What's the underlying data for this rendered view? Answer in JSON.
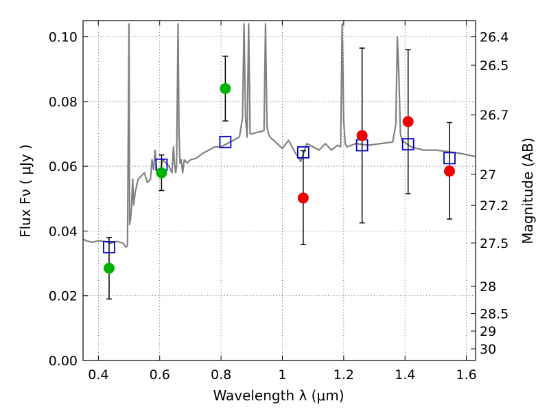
{
  "chart_data": {
    "type": "scatter",
    "xlabel": "Wavelength  λ (μm)",
    "ylabel": "Flux  Fν  ( μJy )",
    "ylabel_right": "Magnitude (AB)",
    "xlim": [
      0.35,
      1.63
    ],
    "ylim": [
      0.0,
      0.105
    ],
    "x_ticks": [
      0.4,
      0.6,
      0.8,
      1.0,
      1.2,
      1.4,
      1.6
    ],
    "x_tick_labels": [
      "0.4",
      "0.6",
      "0.8",
      "1",
      "1.2",
      "1.4",
      "1.6"
    ],
    "y_ticks": [
      0.0,
      0.02,
      0.04,
      0.06,
      0.08,
      0.1
    ],
    "y_tick_labels": [
      "0.00",
      "0.02",
      "0.04",
      "0.06",
      "0.08",
      "0.10"
    ],
    "mag_ticks": [
      {
        "label": "26.4",
        "flux": 0.1
      },
      {
        "label": "26.5",
        "flux": 0.0912
      },
      {
        "label": "26.7",
        "flux": 0.0759
      },
      {
        "label": "27",
        "flux": 0.0575
      },
      {
        "label": "27.2",
        "flux": 0.0479
      },
      {
        "label": "27.5",
        "flux": 0.0363
      },
      {
        "label": "28",
        "flux": 0.0229
      },
      {
        "label": "28.5",
        "flux": 0.0145
      },
      {
        "label": "29",
        "flux": 0.0091
      },
      {
        "label": "30",
        "flux": 0.0036
      }
    ],
    "grid": true,
    "series": [
      {
        "kind": "model-spectrum",
        "color": "#808080",
        "x": [
          0.35,
          0.36,
          0.38,
          0.4,
          0.42,
          0.44,
          0.46,
          0.48,
          0.49,
          0.495,
          0.5,
          0.502,
          0.503,
          0.504,
          0.505,
          0.508,
          0.51,
          0.512,
          0.515,
          0.52,
          0.525,
          0.53,
          0.54,
          0.55,
          0.56,
          0.57,
          0.575,
          0.58,
          0.585,
          0.59,
          0.6,
          0.61,
          0.62,
          0.63,
          0.64,
          0.645,
          0.648,
          0.652,
          0.655,
          0.66,
          0.663,
          0.666,
          0.67,
          0.675,
          0.68,
          0.69,
          0.7,
          0.72,
          0.74,
          0.76,
          0.78,
          0.8,
          0.82,
          0.84,
          0.86,
          0.87,
          0.875,
          0.88,
          0.885,
          0.89,
          0.895,
          0.9,
          0.92,
          0.94,
          0.945,
          0.95,
          0.955,
          0.96,
          1.0,
          1.02,
          1.04,
          1.06,
          1.08,
          1.1,
          1.12,
          1.14,
          1.16,
          1.18,
          1.19,
          1.195,
          1.2,
          1.205,
          1.21,
          1.24,
          1.28,
          1.32,
          1.36,
          1.37,
          1.375,
          1.38,
          1.385,
          1.39,
          1.42,
          1.46,
          1.5,
          1.54,
          1.58,
          1.63
        ],
        "y": [
          0.0375,
          0.037,
          0.0365,
          0.037,
          0.0368,
          0.0362,
          0.0368,
          0.0363,
          0.035,
          0.0355,
          0.104,
          0.042,
          0.045,
          0.043,
          0.044,
          0.047,
          0.052,
          0.056,
          0.048,
          0.052,
          0.054,
          0.056,
          0.057,
          0.058,
          0.055,
          0.056,
          0.062,
          0.059,
          0.065,
          0.059,
          0.058,
          0.062,
          0.061,
          0.06,
          0.058,
          0.066,
          0.061,
          0.058,
          0.06,
          0.104,
          0.07,
          0.061,
          0.062,
          0.058,
          0.062,
          0.061,
          0.062,
          0.0625,
          0.064,
          0.065,
          0.066,
          0.066,
          0.067,
          0.068,
          0.069,
          0.075,
          0.104,
          0.075,
          0.069,
          0.104,
          0.07,
          0.07,
          0.0705,
          0.071,
          0.104,
          0.072,
          0.07,
          0.069,
          0.0655,
          0.068,
          0.0645,
          0.0615,
          0.067,
          0.066,
          0.065,
          0.067,
          0.065,
          0.0665,
          0.066,
          0.104,
          0.074,
          0.067,
          0.066,
          0.067,
          0.0665,
          0.067,
          0.0675,
          0.073,
          0.1,
          0.088,
          0.07,
          0.068,
          0.066,
          0.065,
          0.065,
          0.0645,
          0.064,
          0.063
        ]
      },
      {
        "kind": "model-photometry",
        "marker": "square",
        "color": "#0000cc",
        "x": [
          0.435,
          0.606,
          0.814,
          1.068,
          1.26,
          1.41,
          1.545
        ],
        "y": [
          0.035,
          0.0605,
          0.0675,
          0.0643,
          0.0665,
          0.0668,
          0.0625
        ]
      },
      {
        "kind": "photometry-green",
        "marker": "circle",
        "color": "#00b300",
        "x": [
          0.435,
          0.606,
          0.814
        ],
        "y": [
          0.0285,
          0.058,
          0.084
        ]
      },
      {
        "kind": "photometry-red",
        "marker": "circle",
        "color": "#ee0000",
        "x": [
          1.068,
          1.26,
          1.41,
          1.545
        ],
        "y": [
          0.0502,
          0.0695,
          0.0738,
          0.0585
        ]
      }
    ],
    "error_bars": [
      {
        "x": 0.435,
        "low": 0.019,
        "high": 0.038
      },
      {
        "x": 0.606,
        "low": 0.0525,
        "high": 0.0635
      },
      {
        "x": 0.814,
        "low": 0.074,
        "high": 0.094
      },
      {
        "x": 1.068,
        "low": 0.0358,
        "high": 0.0648
      },
      {
        "x": 1.26,
        "low": 0.0425,
        "high": 0.0965
      },
      {
        "x": 1.41,
        "low": 0.0515,
        "high": 0.096
      },
      {
        "x": 1.545,
        "low": 0.0437,
        "high": 0.0735
      }
    ]
  }
}
